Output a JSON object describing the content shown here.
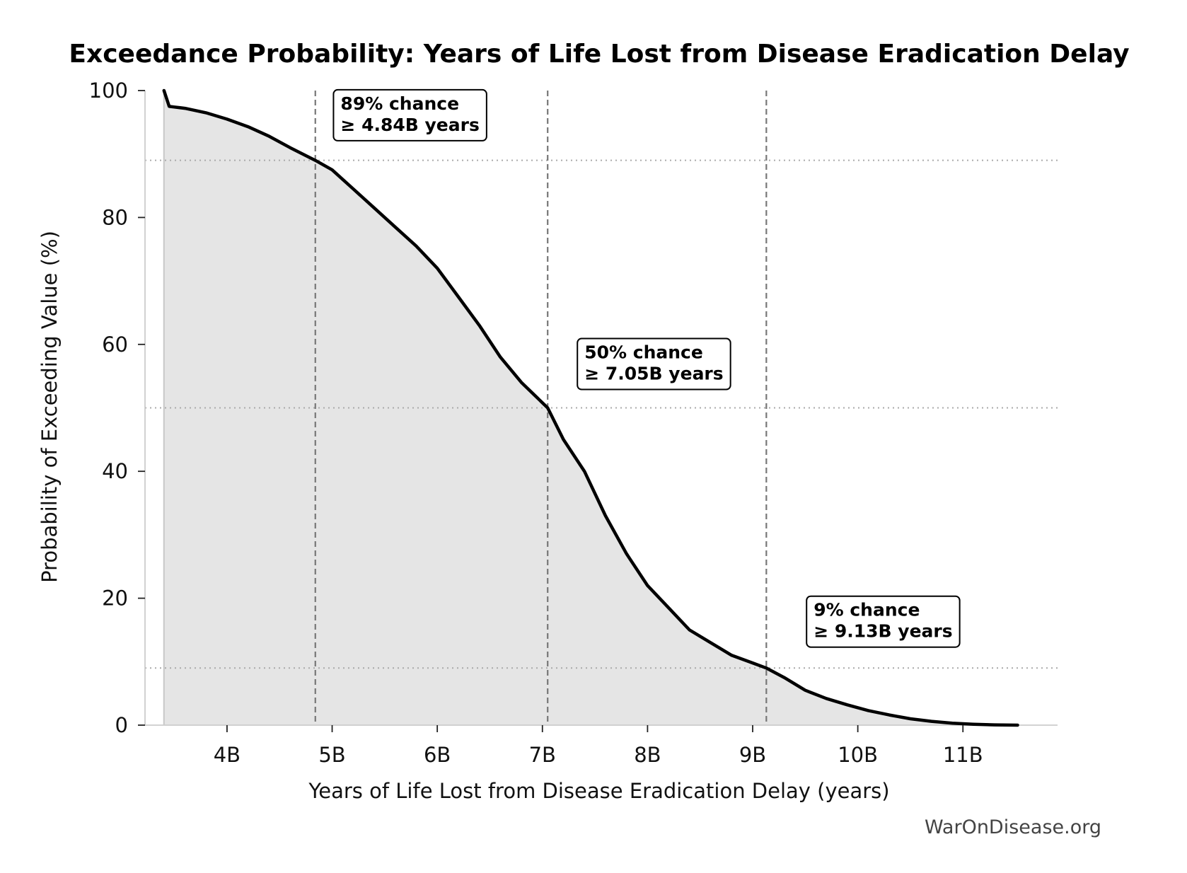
{
  "chart_data": {
    "type": "area",
    "title": "Exceedance Probability: Years of Life Lost from Disease Eradication Delay",
    "xlabel": "Years of Life Lost from Disease Eradication Delay (years)",
    "ylabel": "Probability of Exceeding Value (%)",
    "xlim": [
      3.22,
      11.9
    ],
    "ylim": [
      0,
      100
    ],
    "x_ticks": [
      4,
      5,
      6,
      7,
      8,
      9,
      10,
      11
    ],
    "x_tick_labels": [
      "4B",
      "5B",
      "6B",
      "7B",
      "8B",
      "9B",
      "10B",
      "11B"
    ],
    "y_ticks": [
      0,
      20,
      40,
      60,
      80,
      100
    ],
    "y_tick_labels": [
      "0",
      "20",
      "40",
      "60",
      "80",
      "100"
    ],
    "series": [
      {
        "name": "Exceedance probability",
        "x": [
          3.4,
          3.4,
          3.45,
          3.5,
          3.6,
          3.8,
          4.0,
          4.2,
          4.4,
          4.6,
          4.84,
          5.0,
          5.2,
          5.4,
          5.6,
          5.8,
          6.0,
          6.2,
          6.4,
          6.6,
          6.8,
          7.05,
          7.2,
          7.4,
          7.6,
          7.8,
          8.0,
          8.2,
          8.4,
          8.6,
          8.8,
          9.0,
          9.13,
          9.3,
          9.5,
          9.7,
          9.9,
          10.1,
          10.3,
          10.5,
          10.7,
          10.9,
          11.1,
          11.3,
          11.52
        ],
        "y": [
          100,
          100,
          97.5,
          97.4,
          97.2,
          96.5,
          95.5,
          94.3,
          92.8,
          91.0,
          89.0,
          87.5,
          84.5,
          81.5,
          78.5,
          75.5,
          72.0,
          67.5,
          63.0,
          58.0,
          54.0,
          50.0,
          45.0,
          40.0,
          33.0,
          27.0,
          22.0,
          18.5,
          15.0,
          13.0,
          11.0,
          9.8,
          9.0,
          7.5,
          5.5,
          4.2,
          3.2,
          2.3,
          1.6,
          1.0,
          0.6,
          0.3,
          0.15,
          0.05,
          0.0
        ]
      }
    ],
    "threshold_lines": [
      {
        "x": 4.84,
        "y": 89
      },
      {
        "x": 7.05,
        "y": 50
      },
      {
        "x": 9.13,
        "y": 9
      }
    ],
    "annotations": [
      {
        "line1": "89% chance",
        "line2": "≥ 4.84B years",
        "x": 5.08,
        "y": 97.0
      },
      {
        "line1": "50% chance",
        "line2": "≥ 7.05B years",
        "x": 7.4,
        "y": 57.8
      },
      {
        "line1": "9% chance",
        "line2": "≥ 9.13B years",
        "x": 9.58,
        "y": 17.2
      }
    ],
    "legend": "none",
    "grid": false
  },
  "watermark": "WarOnDisease.org",
  "colors": {
    "line": "#000000",
    "fill": "#e5e5e5",
    "vline": "#777777",
    "hline": "#aaaaaa",
    "axis": "#cccccc"
  }
}
